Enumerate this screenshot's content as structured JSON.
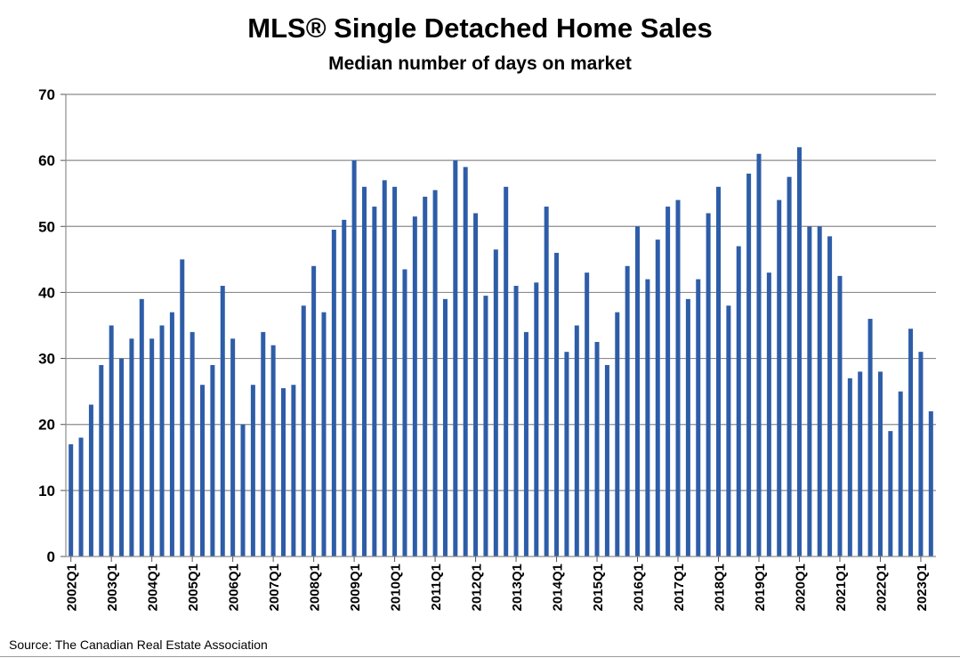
{
  "chart_data": {
    "type": "bar",
    "title": "MLS® Single Detached Home Sales",
    "subtitle": "Median number of days on market",
    "source": "Source: The Canadian Real Estate Association",
    "xlabel": "",
    "ylabel": "",
    "ylim": [
      0,
      70
    ],
    "yticks": [
      0,
      10,
      20,
      30,
      40,
      50,
      60,
      70
    ],
    "grid": true,
    "bar_color": "#2E5DA8",
    "grid_color": "#8c8c8c",
    "series": [
      {
        "name": "Median number of days on market",
        "values": [
          17,
          18,
          23,
          29,
          35,
          30,
          33,
          39,
          33,
          35,
          37,
          45,
          34,
          26,
          29,
          41,
          33,
          20,
          26,
          34,
          32,
          25.5,
          26,
          38,
          44,
          37,
          49.5,
          51,
          60,
          56,
          53,
          57,
          56,
          43.5,
          51.5,
          54.5,
          55.5,
          39,
          60,
          59,
          52,
          39.5,
          46.5,
          56,
          41,
          34,
          41.5,
          53,
          46,
          31,
          35,
          43,
          32.5,
          29,
          37,
          44,
          50,
          42,
          48,
          53,
          54,
          39,
          42,
          52,
          56,
          38,
          47,
          58,
          61,
          43,
          54,
          57.5,
          62,
          50,
          50,
          48.5,
          42.5,
          27,
          28,
          36,
          28,
          19,
          25,
          34.5,
          31,
          22
        ]
      }
    ],
    "categories": [
      "2002Q1",
      "2002Q2",
      "2002Q3",
      "2002Q4",
      "2003Q1",
      "2003Q2",
      "2003Q3",
      "2003Q4",
      "2004Q1",
      "2004Q2",
      "2004Q3",
      "2004Q4",
      "2005Q1",
      "2005Q2",
      "2005Q3",
      "2005Q4",
      "2006Q1",
      "2006Q2",
      "2006Q3",
      "2006Q4",
      "2007Q1",
      "2007Q2",
      "2007Q3",
      "2007Q4",
      "2008Q1",
      "2008Q2",
      "2008Q3",
      "2008Q4",
      "2009Q1",
      "2009Q2",
      "2009Q3",
      "2009Q4",
      "2010Q1",
      "2010Q2",
      "2010Q3",
      "2010Q4",
      "2011Q1",
      "2011Q2",
      "2011Q3",
      "2011Q4",
      "2012Q1",
      "2012Q2",
      "2012Q3",
      "2012Q4",
      "2013Q1",
      "2013Q2",
      "2013Q3",
      "2013Q4",
      "2014Q1",
      "2014Q2",
      "2014Q3",
      "2014Q4",
      "2015Q1",
      "2015Q2",
      "2015Q3",
      "2015Q4",
      "2016Q1",
      "2016Q2",
      "2016Q3",
      "2016Q4",
      "2017Q1",
      "2017Q2",
      "2017Q3",
      "2017Q4",
      "2018Q1",
      "2018Q2",
      "2018Q3",
      "2018Q4",
      "2019Q1",
      "2019Q2",
      "2019Q3",
      "2019Q4",
      "2020Q1",
      "2020Q2",
      "2020Q3",
      "2020Q4",
      "2021Q1",
      "2021Q2",
      "2021Q3",
      "2021Q4",
      "2022Q1",
      "2022Q2",
      "2022Q3",
      "2022Q4",
      "2023Q1",
      "2023Q2"
    ],
    "x_tick_labels": [
      "2002Q1",
      "2003Q1",
      "2004Q1",
      "2005Q1",
      "2006Q1",
      "2007Q1",
      "2008Q1",
      "2009Q1",
      "2010Q1",
      "2011Q1",
      "2012Q1",
      "2013Q1",
      "2014Q1",
      "2015Q1",
      "2016Q1",
      "2017Q1",
      "2018Q1",
      "2019Q1",
      "2020Q1",
      "2021Q1",
      "2022Q1",
      "2023Q1"
    ]
  }
}
